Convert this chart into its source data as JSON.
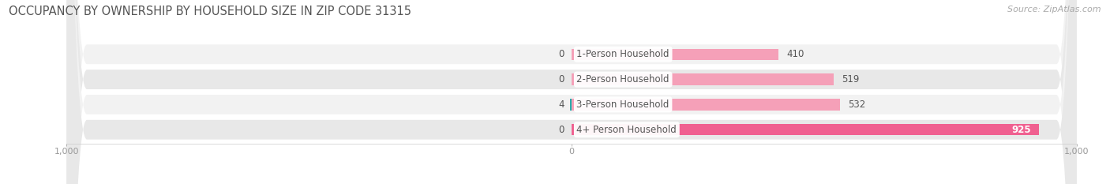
{
  "title": "OCCUPANCY BY OWNERSHIP BY HOUSEHOLD SIZE IN ZIP CODE 31315",
  "source": "Source: ZipAtlas.com",
  "categories": [
    "1-Person Household",
    "2-Person Household",
    "3-Person Household",
    "4+ Person Household"
  ],
  "owner_values": [
    0,
    0,
    4,
    0
  ],
  "renter_values": [
    410,
    519,
    532,
    925
  ],
  "owner_color_light": "#7dcfcf",
  "owner_color_dark": "#2aabab",
  "renter_color_light": "#f5a0b8",
  "renter_color_dark": "#f06090",
  "row_bg_color_odd": "#f2f2f2",
  "row_bg_color_even": "#e8e8e8",
  "xlim_left": -1000,
  "xlim_right": 1000,
  "title_fontsize": 10.5,
  "source_fontsize": 8,
  "label_fontsize": 8.5,
  "tick_fontsize": 8,
  "legend_fontsize": 8.5
}
